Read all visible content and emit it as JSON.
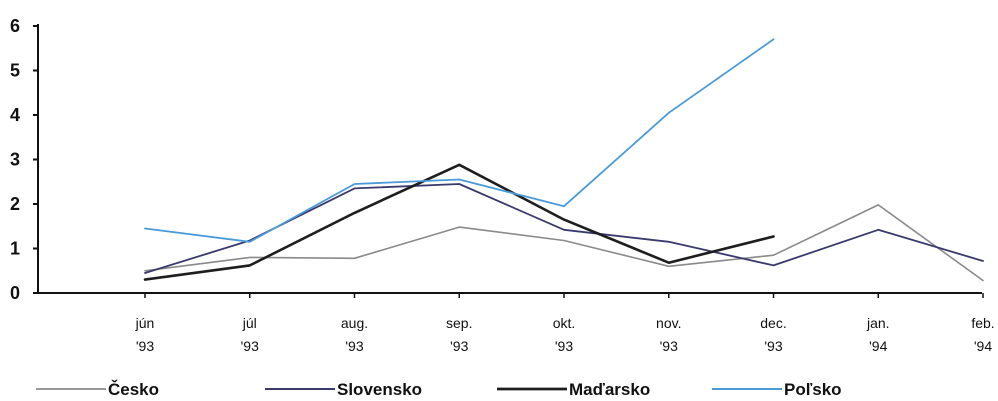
{
  "chart_data": {
    "type": "line",
    "categories": [
      [
        "jún",
        "'93"
      ],
      [
        "júl",
        "'93"
      ],
      [
        "aug.",
        "'93"
      ],
      [
        "sep.",
        "'93"
      ],
      [
        "okt.",
        "'93"
      ],
      [
        "nov.",
        "'93"
      ],
      [
        "dec.",
        "'93"
      ],
      [
        "jan.",
        "'94"
      ],
      [
        "feb.",
        "'94"
      ]
    ],
    "y_ticks": [
      "0",
      "1",
      "2",
      "3",
      "4",
      "5",
      "6"
    ],
    "ylim": [
      0,
      6
    ],
    "grid": false,
    "legend_position": "bottom",
    "series": [
      {
        "name": "Česko",
        "color": "#8a8a8a",
        "width": 1.6,
        "values": [
          0.5,
          0.8,
          0.78,
          1.48,
          1.18,
          0.6,
          0.85,
          1.98,
          0.28
        ]
      },
      {
        "name": "Slovensko",
        "color": "#3b3a6e",
        "width": 1.8,
        "values": [
          0.45,
          1.18,
          2.35,
          2.45,
          1.42,
          1.15,
          0.62,
          1.42,
          0.72
        ]
      },
      {
        "name": "Maďarsko",
        "color": "#1e1e1e",
        "width": 2.6,
        "values": [
          0.3,
          0.62,
          1.8,
          2.88,
          1.65,
          0.68,
          1.27,
          null,
          null
        ]
      },
      {
        "name": "Poľsko",
        "color": "#4a9ad8",
        "width": 1.8,
        "values": [
          1.45,
          1.15,
          2.45,
          2.55,
          1.95,
          4.05,
          5.7,
          null,
          null
        ]
      }
    ]
  }
}
